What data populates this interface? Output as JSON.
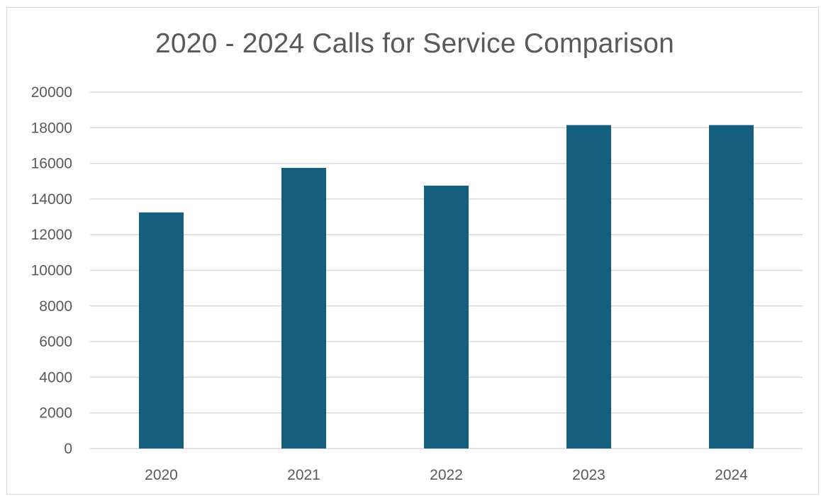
{
  "chart_data": {
    "type": "bar",
    "title": "2020 - 2024 Calls for Service Comparison",
    "xlabel": "",
    "ylabel": "",
    "categories": [
      "2020",
      "2021",
      "2022",
      "2023",
      "2024"
    ],
    "values": [
      13250,
      15750,
      14750,
      18150,
      18150
    ],
    "ylim": [
      0,
      20000
    ],
    "yticks": [
      0,
      2000,
      4000,
      6000,
      8000,
      10000,
      12000,
      14000,
      16000,
      18000,
      20000
    ],
    "grid": true,
    "legend": "none",
    "bar_color": "#155e7e"
  }
}
